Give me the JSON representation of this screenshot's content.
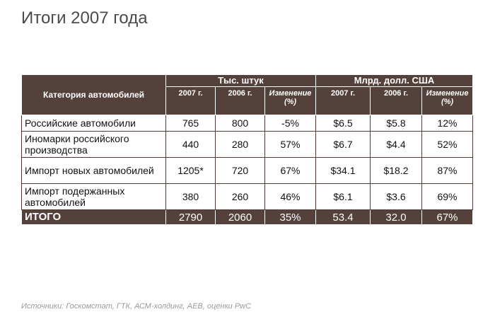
{
  "title": "Итоги 2007 года",
  "table": {
    "category_header": "Категория автомобилей",
    "group_units": "Тыс. штук",
    "group_money": "Млрд. долл. США",
    "subheaders": [
      "2007 г.",
      "2006 г.",
      "Изменение (%)",
      "2007 г.",
      "2006 г.",
      "Изменение (%)"
    ],
    "rows": [
      {
        "label": "Российские автомобили",
        "values": [
          "765",
          "800",
          "-5%",
          "$6.5",
          "$5.8",
          "12%"
        ]
      },
      {
        "label": "Иномарки российского производства",
        "values": [
          "440",
          "280",
          "57%",
          "$6.7",
          "$4.4",
          "52%"
        ]
      },
      {
        "label": "Импорт новых автомобилей",
        "values": [
          "1205*",
          "720",
          "67%",
          "$34.1",
          "$18.2",
          "87%"
        ]
      },
      {
        "label": "Импорт подержанных автомобилей",
        "values": [
          "380",
          "260",
          "46%",
          "$6.1",
          "$3.6",
          "69%"
        ]
      }
    ],
    "total": {
      "label": "ИТОГО",
      "values": [
        "2790",
        "2060",
        "35%",
        "53.4",
        "32.0",
        "67%"
      ]
    }
  },
  "source": "Источники: Госкомстат, ГТК, АСМ-холдинг, AEB, оценки PwC",
  "colors": {
    "header_bg": "#54413c",
    "header_text": "#ffffff",
    "source_text": "#9a9a9a"
  }
}
